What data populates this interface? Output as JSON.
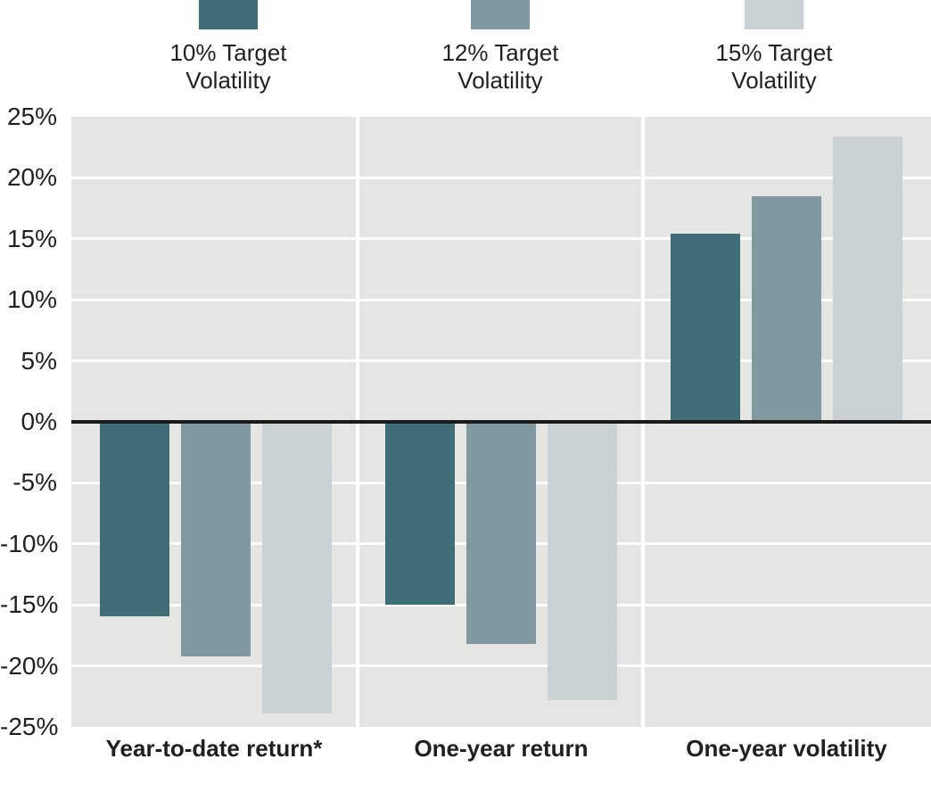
{
  "chart_data": {
    "type": "bar",
    "categories": [
      "Year-to-date return*",
      "One-year return",
      "One-year volatility"
    ],
    "series": [
      {
        "name": "10% Target Volatility",
        "color": "#3e6c77",
        "values": [
          -15.9,
          -15.0,
          15.4
        ]
      },
      {
        "name": "12% Target Volatility",
        "color": "#8298a1",
        "values": [
          -19.2,
          -18.2,
          18.5
        ]
      },
      {
        "name": "15% Target Volatility",
        "color": "#c9d1d4",
        "values": [
          -23.9,
          -22.8,
          23.4
        ]
      }
    ],
    "title": "",
    "xlabel": "",
    "ylabel": "",
    "ylim": [
      -25,
      25
    ],
    "ytick_step": 5,
    "ytick_labels": [
      "25%",
      "20%",
      "15%",
      "10%",
      "5%",
      "0%",
      "-5%",
      "-10%",
      "-15%",
      "-20%",
      "-25%"
    ],
    "grid": true,
    "legend_position": "top",
    "colors": {
      "plot_background": "#e5e5e3",
      "gridline": "#ffffff",
      "zero_line": "#1a1a1a",
      "text": "#231f20",
      "page_background": "#ffffff"
    }
  }
}
